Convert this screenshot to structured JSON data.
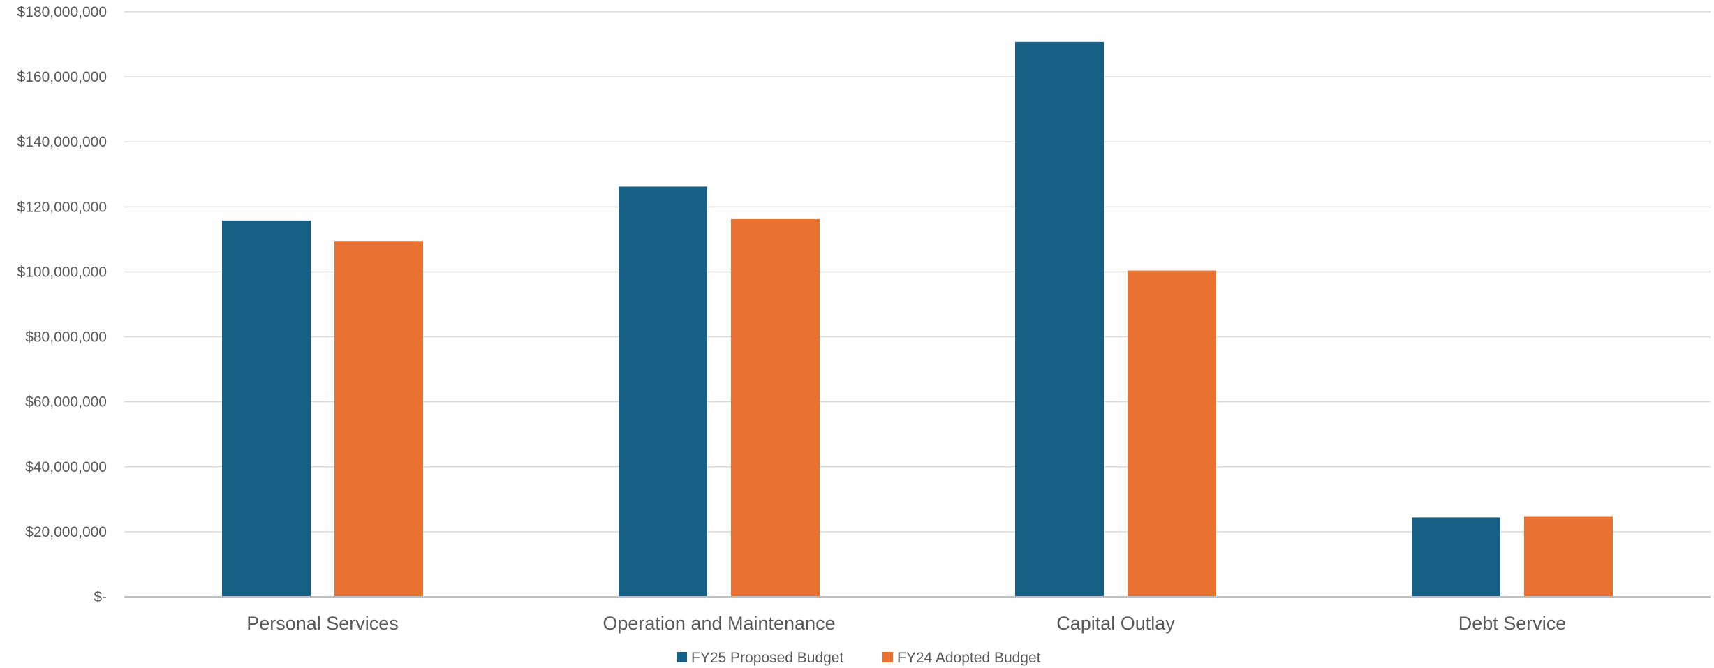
{
  "chart_data": {
    "type": "bar",
    "categories": [
      "Personal Services",
      "Operation and Maintenance",
      "Capital Outlay",
      "Debt Service"
    ],
    "series": [
      {
        "name": "FY25 Proposed Budget",
        "color": "#175f84",
        "values": [
          115800000,
          126200000,
          170800000,
          24400000
        ]
      },
      {
        "name": "FY24 Adopted Budget",
        "color": "#e97132",
        "values": [
          109500000,
          116200000,
          100400000,
          24800000
        ]
      }
    ],
    "y_ticks": [
      {
        "value": 0,
        "label": "$-"
      },
      {
        "value": 20000000,
        "label": "$20,000,000"
      },
      {
        "value": 40000000,
        "label": "$40,000,000"
      },
      {
        "value": 60000000,
        "label": "$60,000,000"
      },
      {
        "value": 80000000,
        "label": "$80,000,000"
      },
      {
        "value": 100000000,
        "label": "$100,000,000"
      },
      {
        "value": 120000000,
        "label": "$120,000,000"
      },
      {
        "value": 140000000,
        "label": "$140,000,000"
      },
      {
        "value": 160000000,
        "label": "$160,000,000"
      },
      {
        "value": 180000000,
        "label": "$180,000,000"
      }
    ],
    "ylim": [
      0,
      180000000
    ],
    "grid": true,
    "legend_position": "bottom",
    "colors": {
      "gridline": "#d9d9d9",
      "axis": "#bfbfbf",
      "text": "#595959"
    }
  }
}
